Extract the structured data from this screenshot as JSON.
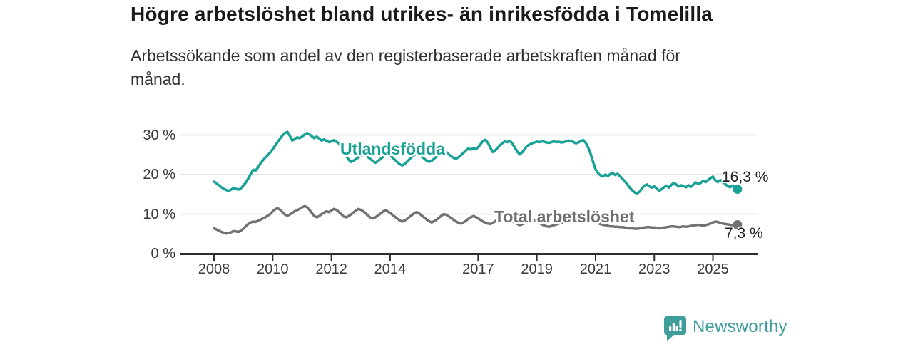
{
  "title": "Högre arbetslöshet bland utrikes- än inrikesfödda i Tomelilla",
  "subtitle": "Arbetssökande som andel av den registerbaserade arbetskraften månad för\nmånad.",
  "footer": {
    "brand": "Newsworthy",
    "logo_icon": "bar-chart-speech-bubble-icon"
  },
  "colors": {
    "foreign_born_line": "#17a295",
    "total_line": "#717176",
    "grid": "#dadada",
    "axis": "#2e2e2e",
    "title_text": "#1a1a1a",
    "tick_text": "#3a3a3a",
    "brand_teal": "#3d9e9b"
  },
  "chart_data": {
    "type": "line",
    "title": "Högre arbetslöshet bland utrikes- än inrikesfödda i Tomelilla",
    "subtitle": "Arbetssökande som andel av den registerbaserade arbetskraften månad för månad.",
    "x_unit": "month",
    "x_start": "2008-01",
    "x_end": "2025-11",
    "grid": "horizontal",
    "legend_position": "inline-labels",
    "ylim": [
      0,
      32
    ],
    "y_axis": {
      "tick_values": [
        0,
        10,
        20,
        30
      ],
      "tick_labels": [
        "0 %",
        "10 %",
        "20 %",
        "30 %"
      ]
    },
    "x_axis": {
      "tick_values": [
        2008,
        2010,
        2012,
        2014,
        2017,
        2019,
        2021,
        2023,
        2025
      ],
      "tick_labels": [
        "2008",
        "2010",
        "2012",
        "2014",
        "2017",
        "2019",
        "2021",
        "2023",
        "2025"
      ]
    },
    "series": [
      {
        "name": "Utlandsfödda",
        "color": "#17a295",
        "end_label": "16,3 %",
        "end_value": 16.3,
        "values": [
          18.2,
          17.8,
          17.3,
          16.8,
          16.4,
          16.1,
          15.9,
          16.2,
          16.6,
          16.4,
          16.2,
          16.5,
          17.2,
          18.0,
          19.0,
          20.1,
          21.2,
          21.0,
          21.8,
          22.8,
          23.6,
          24.3,
          24.9,
          25.6,
          26.4,
          27.3,
          28.2,
          29.1,
          29.9,
          30.5,
          30.8,
          29.8,
          28.6,
          29.0,
          29.4,
          29.2,
          29.6,
          30.1,
          30.5,
          30.2,
          29.7,
          29.2,
          29.6,
          29.1,
          28.6,
          28.9,
          28.5,
          28.2,
          28.4,
          28.7,
          28.3,
          27.9,
          26.8,
          26.0,
          24.8,
          23.8,
          23.2,
          23.5,
          23.9,
          24.3,
          24.8,
          25.2,
          24.9,
          24.4,
          23.9,
          23.4,
          23.0,
          23.4,
          23.9,
          24.4,
          24.9,
          25.2,
          24.8,
          24.3,
          23.7,
          23.1,
          22.6,
          22.3,
          22.7,
          23.3,
          23.9,
          24.5,
          25.0,
          25.4,
          25.0,
          24.5,
          24.0,
          23.5,
          23.2,
          23.5,
          24.0,
          24.6,
          25.2,
          25.7,
          26.0,
          25.6,
          25.1,
          24.6,
          24.2,
          24.0,
          24.4,
          24.9,
          25.5,
          26.1,
          26.6,
          26.3,
          26.7,
          26.4,
          26.9,
          27.7,
          28.5,
          28.8,
          28.0,
          26.8,
          25.7,
          26.1,
          26.8,
          27.4,
          28.0,
          28.4,
          28.2,
          28.5,
          27.8,
          26.8,
          25.8,
          25.1,
          25.6,
          26.4,
          27.2,
          27.6,
          27.9,
          28.1,
          28.3,
          28.2,
          28.4,
          28.3,
          28.1,
          28.0,
          28.2,
          28.4,
          28.2,
          28.3,
          28.1,
          28.2,
          28.4,
          28.6,
          28.5,
          28.2,
          27.9,
          28.1,
          28.5,
          28.7,
          28.0,
          26.8,
          25.2,
          23.2,
          21.3,
          20.4,
          19.8,
          19.5,
          20.0,
          19.6,
          20.1,
          20.4,
          19.9,
          20.2,
          19.6,
          18.9,
          18.3,
          17.5,
          16.7,
          16.0,
          15.5,
          15.2,
          15.7,
          16.5,
          17.2,
          17.5,
          17.0,
          16.7,
          17.0,
          16.5,
          15.9,
          16.3,
          16.8,
          17.2,
          16.7,
          17.4,
          17.9,
          17.5,
          17.0,
          17.3,
          17.1,
          16.8,
          17.3,
          16.9,
          17.5,
          18.0,
          17.6,
          17.9,
          18.4,
          18.1,
          18.6,
          19.1,
          19.5,
          18.5,
          18.1,
          18.6,
          18.2,
          17.6,
          17.1,
          16.8,
          17.2,
          16.7,
          16.3
        ]
      },
      {
        "name": "Total arbetslöshet",
        "color": "#717176",
        "end_label": "7,3 %",
        "end_value": 7.3,
        "values": [
          6.4,
          6.1,
          5.8,
          5.5,
          5.3,
          5.1,
          5.2,
          5.4,
          5.7,
          5.6,
          5.5,
          5.8,
          6.3,
          6.9,
          7.5,
          7.9,
          8.1,
          8.0,
          8.3,
          8.6,
          8.9,
          9.2,
          9.6,
          10.0,
          10.7,
          11.2,
          11.5,
          11.1,
          10.5,
          9.9,
          9.6,
          9.9,
          10.3,
          10.7,
          11.0,
          11.3,
          11.7,
          12.0,
          11.8,
          11.1,
          10.3,
          9.5,
          9.2,
          9.5,
          10.0,
          10.4,
          10.7,
          10.5,
          10.9,
          11.3,
          11.1,
          10.6,
          10.0,
          9.4,
          9.2,
          9.5,
          9.9,
          10.4,
          10.9,
          11.3,
          11.1,
          10.7,
          10.2,
          9.6,
          9.1,
          8.9,
          9.2,
          9.6,
          10.1,
          10.6,
          11.0,
          10.7,
          10.3,
          9.8,
          9.3,
          8.8,
          8.4,
          8.1,
          8.4,
          8.8,
          9.3,
          9.8,
          10.3,
          10.5,
          10.1,
          9.6,
          9.1,
          8.6,
          8.2,
          7.9,
          8.2,
          8.6,
          9.1,
          9.6,
          10.0,
          9.8,
          9.4,
          9.0,
          8.5,
          8.1,
          7.8,
          7.6,
          7.9,
          8.3,
          8.8,
          9.2,
          9.5,
          9.3,
          8.9,
          8.5,
          8.1,
          7.8,
          7.6,
          7.5,
          7.8,
          8.2,
          8.7,
          9.1,
          9.4,
          9.2,
          9.0,
          8.6,
          8.2,
          7.8,
          7.5,
          7.2,
          7.4,
          7.7,
          8.0,
          8.2,
          8.4,
          8.6,
          8.2,
          7.8,
          7.4,
          7.1,
          6.9,
          6.8,
          7.0,
          7.2,
          7.4,
          7.6,
          7.8,
          8.0,
          8.3,
          8.6,
          8.9,
          9.1,
          9.0,
          8.8,
          8.6,
          8.5,
          8.4,
          8.3,
          8.2,
          8.1,
          7.9,
          7.7,
          7.5,
          7.3,
          7.2,
          7.0,
          6.9,
          6.9,
          6.8,
          6.8,
          6.7,
          6.7,
          6.6,
          6.5,
          6.4,
          6.4,
          6.3,
          6.3,
          6.4,
          6.5,
          6.6,
          6.7,
          6.7,
          6.6,
          6.6,
          6.5,
          6.4,
          6.5,
          6.6,
          6.7,
          6.8,
          6.9,
          6.9,
          6.8,
          6.7,
          6.8,
          6.9,
          6.8,
          6.9,
          7.0,
          7.1,
          7.2,
          7.3,
          7.2,
          7.1,
          7.2,
          7.4,
          7.6,
          7.9,
          8.1,
          8.0,
          7.8,
          7.6,
          7.5,
          7.4,
          7.3,
          7.2,
          7.2,
          7.3
        ]
      }
    ]
  }
}
